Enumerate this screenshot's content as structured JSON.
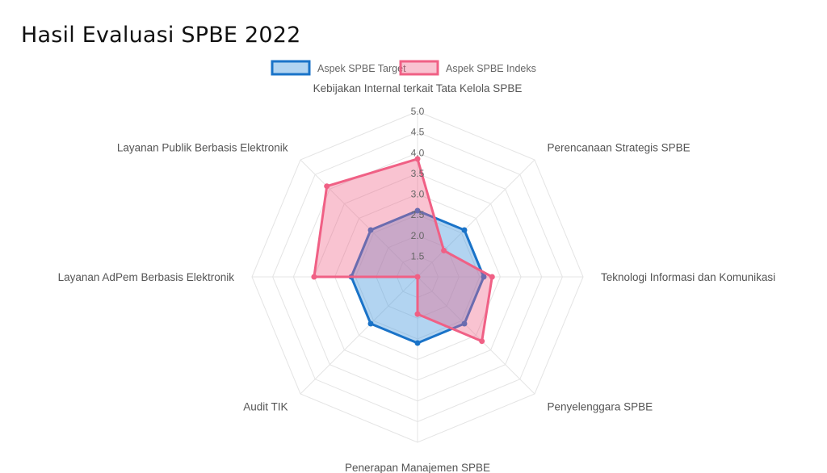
{
  "page": {
    "title": "Hasil Evaluasi SPBE 2022"
  },
  "chart_data": {
    "type": "radar",
    "title": "Hasil Evaluasi SPBE 2022",
    "categories": [
      "Kebijakan Internal terkait Tata Kelola SPBE",
      "Perencanaan Strategis SPBE",
      "Teknologi Informasi dan Komunikasi",
      "Penyelenggara SPBE",
      "Penerapan Manajemen SPBE",
      "Audit TIK",
      "Layanan AdPem Berbasis Elektronik",
      "Layanan Publik Berbasis Elektronik"
    ],
    "r_range": [
      1.0,
      5.0
    ],
    "r_ticks": [
      "1.5",
      "2.0",
      "2.5",
      "3.0",
      "3.5",
      "4.0",
      "4.5",
      "5.0"
    ],
    "r_tick_values": [
      1.5,
      2.0,
      2.5,
      3.0,
      3.5,
      4.0,
      4.5,
      5.0
    ],
    "grid": true,
    "legend_position": "top",
    "series": [
      {
        "name": "Aspek SPBE Target",
        "values": [
          2.6,
          2.6,
          2.6,
          2.6,
          2.6,
          2.6,
          2.6,
          2.6
        ],
        "stroke": "#1a73c8",
        "fill": "rgba(85,160,225,0.45)"
      },
      {
        "name": "Aspek SPBE Indeks",
        "values": [
          3.85,
          1.9,
          2.8,
          3.2,
          1.9,
          1.0,
          3.5,
          4.1
        ],
        "stroke": "#f06085",
        "fill": "rgba(240,96,133,0.38)"
      }
    ]
  }
}
